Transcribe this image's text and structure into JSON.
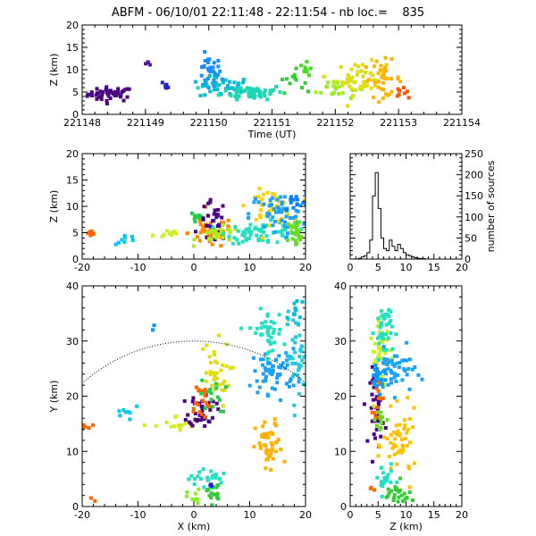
{
  "title": "ABFM - 06/10/01 22:11:48 - 22:11:54 - nb loc.=    835",
  "chart_data": [
    {
      "id": "time-height",
      "type": "scatter",
      "xlabel": "Time (UT)",
      "ylabel": "Z (km)",
      "xlim": [
        221148,
        221154
      ],
      "ylim": [
        0,
        20
      ],
      "xticks": [
        "221148",
        "221149",
        "221150",
        "221151",
        "221152",
        "221153",
        "221154"
      ],
      "yticks": [
        "0",
        "5",
        "10",
        "15",
        "20"
      ],
      "clusters": [
        {
          "cx": 221148.45,
          "cy": 4.5,
          "sx": 0.18,
          "sy": 0.8,
          "n": 45,
          "color": "#4b0082"
        },
        {
          "cx": 221149.05,
          "cy": 11.5,
          "sx": 0.03,
          "sy": 0.2,
          "n": 4,
          "color": "#5a14a0"
        },
        {
          "cx": 221149.35,
          "cy": 6.5,
          "sx": 0.04,
          "sy": 0.5,
          "n": 6,
          "color": "#2020d0"
        },
        {
          "cx": 221150.0,
          "cy": 9.0,
          "sx": 0.1,
          "sy": 2.0,
          "n": 35,
          "color": "#1a8fff"
        },
        {
          "cx": 221150.25,
          "cy": 6.0,
          "sx": 0.2,
          "sy": 1.2,
          "n": 40,
          "color": "#00bcd4"
        },
        {
          "cx": 221150.7,
          "cy": 5.0,
          "sx": 0.25,
          "sy": 0.8,
          "n": 55,
          "color": "#1ed6b4"
        },
        {
          "cx": 221151.3,
          "cy": 7.5,
          "sx": 0.1,
          "sy": 1.2,
          "n": 12,
          "color": "#33cc33"
        },
        {
          "cx": 221151.55,
          "cy": 10.0,
          "sx": 0.05,
          "sy": 0.8,
          "n": 10,
          "color": "#44dd22"
        },
        {
          "cx": 221152.0,
          "cy": 6.0,
          "sx": 0.15,
          "sy": 1.5,
          "n": 25,
          "color": "#99ee22"
        },
        {
          "cx": 221152.4,
          "cy": 8.0,
          "sx": 0.2,
          "sy": 1.8,
          "n": 45,
          "color": "#dddd10"
        },
        {
          "cx": 221152.75,
          "cy": 8.0,
          "sx": 0.15,
          "sy": 2.0,
          "n": 35,
          "color": "#ffb000"
        },
        {
          "cx": 221153.05,
          "cy": 5.0,
          "sx": 0.05,
          "sy": 0.5,
          "n": 8,
          "color": "#ff5500"
        }
      ]
    },
    {
      "id": "x-z",
      "type": "scatter",
      "ylabel": "Z (km)",
      "xlim": [
        -20,
        20
      ],
      "ylim": [
        0,
        20
      ],
      "xticks": [
        "-20",
        "-10",
        "0",
        "10",
        "20"
      ],
      "yticks": [
        "0",
        "5",
        "10",
        "15",
        "20"
      ],
      "clusters": [
        {
          "cx": -18.5,
          "cy": 4.5,
          "sx": 0.8,
          "sy": 0.4,
          "n": 8,
          "color": "#ff6600"
        },
        {
          "cx": -12.0,
          "cy": 3.7,
          "sx": 1.0,
          "sy": 0.5,
          "n": 8,
          "color": "#00c8f0"
        },
        {
          "cx": -5.0,
          "cy": 4.8,
          "sx": 1.5,
          "sy": 0.5,
          "n": 10,
          "color": "#ccee22"
        },
        {
          "cx": 0.5,
          "cy": 8.0,
          "sx": 0.6,
          "sy": 0.8,
          "n": 10,
          "color": "#22cc44"
        },
        {
          "cx": 3.0,
          "cy": 5.0,
          "sx": 2.0,
          "sy": 1.5,
          "n": 40,
          "color": "#ff8800"
        },
        {
          "cx": 3.5,
          "cy": 7.0,
          "sx": 1.2,
          "sy": 2.0,
          "n": 30,
          "color": "#4b0082"
        },
        {
          "cx": 4.5,
          "cy": 4.5,
          "sx": 2.0,
          "sy": 0.8,
          "n": 25,
          "color": "#aaee22"
        },
        {
          "cx": 12.0,
          "cy": 5.0,
          "sx": 3.0,
          "sy": 1.0,
          "n": 60,
          "color": "#20e0c0"
        },
        {
          "cx": 13.5,
          "cy": 10.0,
          "sx": 2.0,
          "sy": 1.5,
          "n": 45,
          "color": "#ffd000"
        },
        {
          "cx": 15.0,
          "cy": 8.5,
          "sx": 2.5,
          "sy": 2.0,
          "n": 50,
          "color": "#1aa0ff"
        },
        {
          "cx": 18.5,
          "cy": 5.0,
          "sx": 1.0,
          "sy": 1.5,
          "n": 35,
          "color": "#66dd22"
        },
        {
          "cx": 18.0,
          "cy": 11.0,
          "sx": 1.0,
          "sy": 1.0,
          "n": 12,
          "color": "#0080ff"
        }
      ]
    },
    {
      "id": "height-histogram",
      "type": "bar",
      "ylabel_right": "number of sources",
      "xlim": [
        0,
        20
      ],
      "ylim": [
        0,
        250
      ],
      "xticks": [
        "0",
        "5",
        "10",
        "15",
        "20"
      ],
      "yticks": [
        "0",
        "50",
        "100",
        "150",
        "200",
        "250"
      ],
      "bin_width": 0.5,
      "bin_start": 0,
      "values": [
        0,
        0,
        0,
        2,
        5,
        8,
        15,
        45,
        150,
        205,
        120,
        50,
        25,
        20,
        45,
        30,
        20,
        35,
        25,
        15,
        10,
        8,
        5,
        3,
        2,
        1,
        1,
        0,
        0,
        0,
        0,
        0,
        0,
        0,
        0,
        0,
        0,
        0,
        0,
        0
      ]
    },
    {
      "id": "x-y",
      "type": "scatter",
      "xlabel": "X (km)",
      "ylabel": "Y (km)",
      "xlim": [
        -20,
        20
      ],
      "ylim": [
        0,
        40
      ],
      "xticks": [
        "-20",
        "-10",
        "0",
        "10",
        "20"
      ],
      "yticks": [
        "0",
        "10",
        "20",
        "30",
        "40"
      ],
      "range_ring_km": 30,
      "clusters": [
        {
          "cx": -19.0,
          "cy": 14.5,
          "sx": 0.8,
          "sy": 0.3,
          "n": 5,
          "color": "#ff6600"
        },
        {
          "cx": -18.0,
          "cy": 2.5,
          "sx": 0.8,
          "sy": 1.2,
          "n": 3,
          "color": "#ff6600"
        },
        {
          "cx": -12.0,
          "cy": 17.0,
          "sx": 1.2,
          "sy": 1.5,
          "n": 8,
          "color": "#00c8f0"
        },
        {
          "cx": -7.0,
          "cy": 32.5,
          "sx": 0.3,
          "sy": 0.3,
          "n": 2,
          "color": "#0099ff"
        },
        {
          "cx": -3.0,
          "cy": 14.5,
          "sx": 2.0,
          "sy": 1.0,
          "n": 15,
          "color": "#ccee22"
        },
        {
          "cx": 1.5,
          "cy": 17.5,
          "sx": 1.2,
          "sy": 1.5,
          "n": 40,
          "color": "#4b0082"
        },
        {
          "cx": 1.0,
          "cy": 19.0,
          "sx": 1.0,
          "sy": 2.0,
          "n": 20,
          "color": "#ff6600"
        },
        {
          "cx": 3.5,
          "cy": 24.0,
          "sx": 1.5,
          "sy": 3.0,
          "n": 35,
          "color": "#dddd10"
        },
        {
          "cx": 3.5,
          "cy": 20.0,
          "sx": 1.2,
          "sy": 1.5,
          "n": 15,
          "color": "#22cc44"
        },
        {
          "cx": 2.0,
          "cy": 5.0,
          "sx": 1.5,
          "sy": 1.0,
          "n": 25,
          "color": "#20e0c0"
        },
        {
          "cx": 3.5,
          "cy": 2.5,
          "sx": 0.6,
          "sy": 1.0,
          "n": 15,
          "color": "#33cc33"
        },
        {
          "cx": 0.0,
          "cy": 1.5,
          "sx": 0.6,
          "sy": 0.8,
          "n": 10,
          "color": "#88ee22"
        },
        {
          "cx": 3.0,
          "cy": 4.0,
          "sx": 0.3,
          "sy": 0.3,
          "n": 3,
          "color": "#2020d0"
        },
        {
          "cx": 13.5,
          "cy": 10.5,
          "sx": 1.2,
          "sy": 2.5,
          "n": 45,
          "color": "#ffb000"
        },
        {
          "cx": 14.5,
          "cy": 24.5,
          "sx": 2.0,
          "sy": 2.0,
          "n": 60,
          "color": "#1aa0ff"
        },
        {
          "cx": 13.0,
          "cy": 31.5,
          "sx": 1.5,
          "sy": 2.0,
          "n": 40,
          "color": "#20e0c0"
        },
        {
          "cx": 18.5,
          "cy": 27.5,
          "sx": 1.0,
          "sy": 3.5,
          "n": 40,
          "color": "#20c8e0"
        },
        {
          "cx": 18.5,
          "cy": 35.0,
          "sx": 0.8,
          "sy": 1.5,
          "n": 10,
          "color": "#00bcd4"
        }
      ]
    },
    {
      "id": "z-y",
      "type": "scatter",
      "xlabel": "Z (km)",
      "xlim": [
        0,
        20
      ],
      "ylim": [
        0,
        40
      ],
      "xticks": [
        "0",
        "5",
        "10",
        "15",
        "20"
      ],
      "yticks": [
        "0",
        "10",
        "20",
        "30",
        "40"
      ],
      "clusters": [
        {
          "cx": 4.8,
          "cy": 18.0,
          "sx": 0.6,
          "sy": 3.5,
          "n": 45,
          "color": "#4b0082"
        },
        {
          "cx": 5.0,
          "cy": 20.5,
          "sx": 0.5,
          "sy": 2.0,
          "n": 15,
          "color": "#ff6600"
        },
        {
          "cx": 5.5,
          "cy": 27.0,
          "sx": 1.0,
          "sy": 3.0,
          "n": 40,
          "color": "#ccee22"
        },
        {
          "cx": 6.0,
          "cy": 32.0,
          "sx": 0.8,
          "sy": 2.5,
          "n": 40,
          "color": "#20e0c0"
        },
        {
          "cx": 8.0,
          "cy": 24.5,
          "sx": 1.8,
          "sy": 2.0,
          "n": 50,
          "color": "#1aa0ff"
        },
        {
          "cx": 5.0,
          "cy": 24.0,
          "sx": 0.8,
          "sy": 1.5,
          "n": 20,
          "color": "#0099ff"
        },
        {
          "cx": 9.0,
          "cy": 11.0,
          "sx": 1.5,
          "sy": 3.0,
          "n": 50,
          "color": "#ffc000"
        },
        {
          "cx": 6.0,
          "cy": 5.0,
          "sx": 0.8,
          "sy": 1.5,
          "n": 20,
          "color": "#20e0c0"
        },
        {
          "cx": 8.5,
          "cy": 2.0,
          "sx": 1.5,
          "sy": 1.2,
          "n": 25,
          "color": "#33cc33"
        },
        {
          "cx": 5.5,
          "cy": 16.0,
          "sx": 0.5,
          "sy": 1.5,
          "n": 12,
          "color": "#66dd22"
        },
        {
          "cx": 3.5,
          "cy": 3.0,
          "sx": 0.4,
          "sy": 0.5,
          "n": 3,
          "color": "#ff6600"
        }
      ]
    }
  ]
}
